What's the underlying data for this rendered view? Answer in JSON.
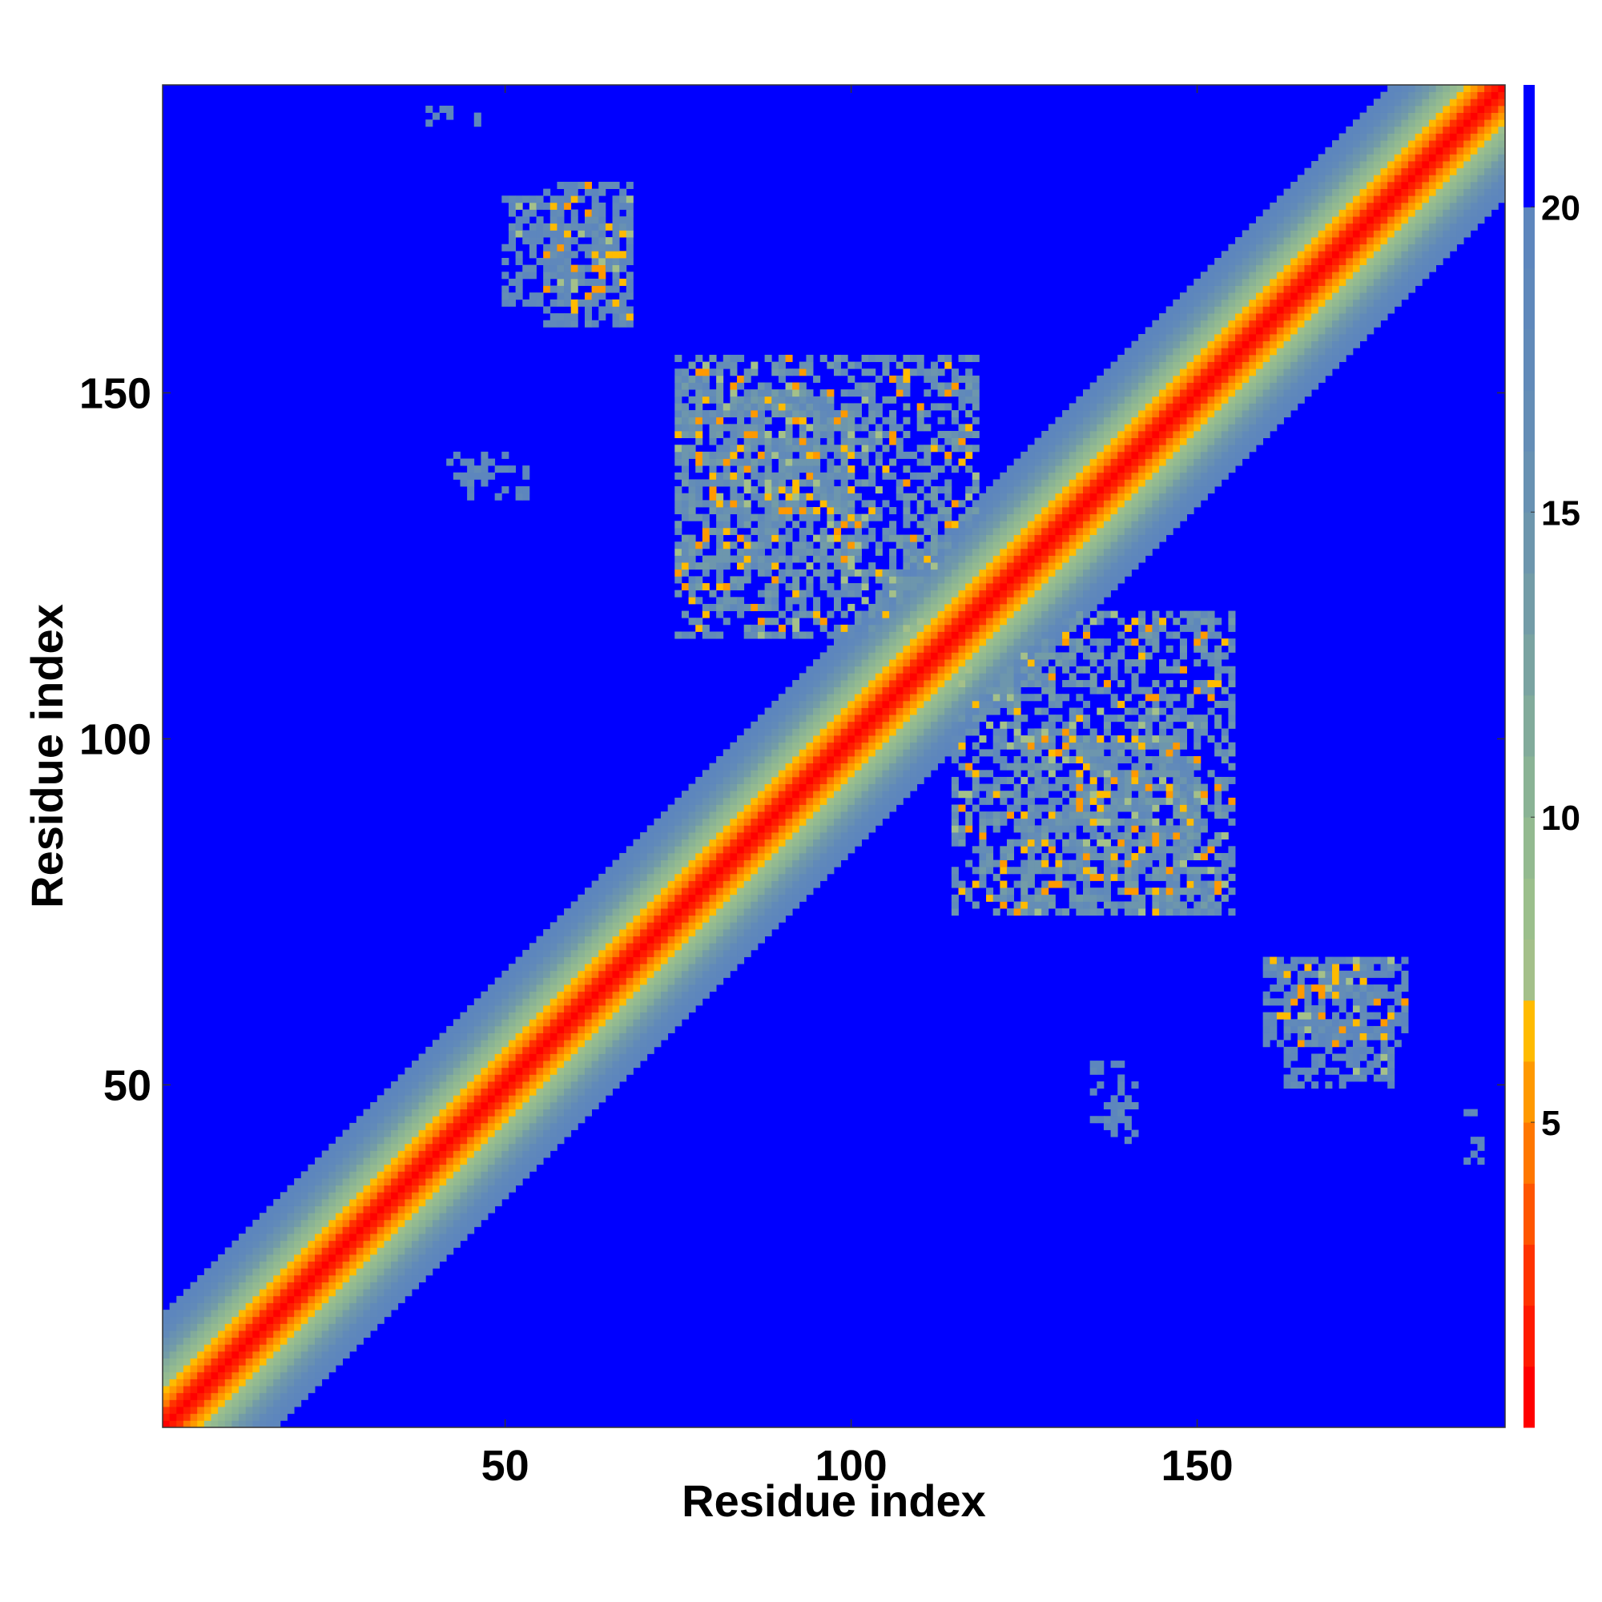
{
  "chart_data": {
    "type": "heatmap",
    "title": "",
    "xlabel": "Residue index",
    "ylabel": "Residue index",
    "xlim": [
      1,
      194
    ],
    "ylim": [
      1,
      194
    ],
    "x_ticks": [
      50,
      100,
      150
    ],
    "y_ticks": [
      50,
      100,
      150
    ],
    "colorbar": {
      "min": 0,
      "max": 22,
      "ticks": [
        5,
        10,
        15,
        20
      ],
      "colors": [
        "#ff0000",
        "#ff1a00",
        "#ff3300",
        "#ff5500",
        "#ff7700",
        "#ff9900",
        "#ffbb00",
        "#a4c08a",
        "#9bbf8c",
        "#93ba90",
        "#8ab395",
        "#82ab9b",
        "#7aa3a1",
        "#739ca7",
        "#6d96ad",
        "#6891b2",
        "#648db6",
        "#618ab9",
        "#5f88bb",
        "#5d86bd",
        "#0000ff"
      ]
    },
    "background_value": 22,
    "diagonal_band": {
      "description_values": "distance grows from 0 on the diagonal to ~20 at |i-j|=16",
      "half_width": 16
    },
    "contacts": [
      {
        "x": [
          75,
          100
        ],
        "y": [
          125,
          150
        ],
        "typical_value": 16
      },
      {
        "x": [
          115,
          155
        ],
        "y": [
          75,
          118
        ],
        "typical_value": 16
      },
      {
        "x": [
          50,
          68
        ],
        "y": [
          163,
          178
        ],
        "typical_value": 18
      },
      {
        "x": [
          160,
          180
        ],
        "y": [
          56,
          68
        ],
        "typical_value": 18
      },
      {
        "x": [
          135,
          140
        ],
        "y": [
          43,
          53
        ],
        "typical_value": 19
      },
      {
        "x": [
          42,
          52
        ],
        "y": [
          137,
          141
        ],
        "typical_value": 19
      },
      {
        "x": [
          189,
          191
        ],
        "y": [
          39,
          46
        ],
        "typical_value": 19
      }
    ]
  }
}
